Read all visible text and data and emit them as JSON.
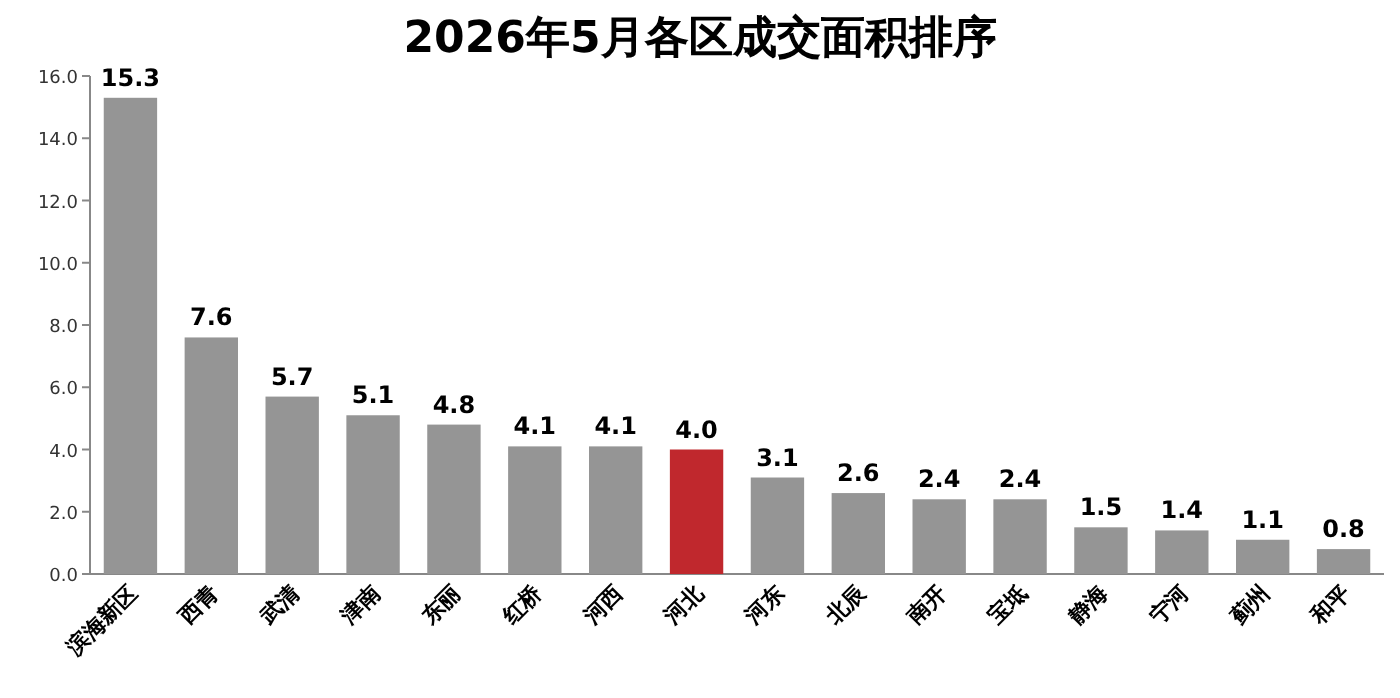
{
  "chart_data": {
    "type": "bar",
    "title": "2026年5月各区成交面积排序",
    "categories": [
      "滨海新区",
      "西青",
      "武清",
      "津南",
      "东丽",
      "红桥",
      "河西",
      "河北",
      "河东",
      "北辰",
      "南开",
      "宝坻",
      "静海",
      "宁河",
      "蓟州",
      "和平"
    ],
    "values": [
      15.3,
      7.6,
      5.7,
      5.1,
      4.8,
      4.1,
      4.1,
      4.0,
      3.1,
      2.6,
      2.4,
      2.4,
      1.5,
      1.4,
      1.1,
      0.8
    ],
    "value_labels": [
      "15.3",
      "7.6",
      "5.7",
      "5.1",
      "4.8",
      "4.1",
      "4.1",
      "4.0",
      "3.1",
      "2.6",
      "2.4",
      "2.4",
      "1.5",
      "1.4",
      "1.1",
      "0.8"
    ],
    "colors": [
      "#959595",
      "#959595",
      "#959595",
      "#959595",
      "#959595",
      "#959595",
      "#959595",
      "#c0282d",
      "#959595",
      "#959595",
      "#959595",
      "#959595",
      "#959595",
      "#959595",
      "#959595",
      "#959595"
    ],
    "ylim": [
      0,
      16
    ],
    "yticks": [
      {
        "value": 0,
        "label": "0.0"
      },
      {
        "value": 2,
        "label": "2.0"
      },
      {
        "value": 4,
        "label": "4.0"
      },
      {
        "value": 6,
        "label": "6.0"
      },
      {
        "value": 8,
        "label": "8.0"
      },
      {
        "value": 10,
        "label": "10.0"
      },
      {
        "value": 12,
        "label": "12.0"
      },
      {
        "value": 14,
        "label": "14.0"
      },
      {
        "value": 16,
        "label": "16.0"
      }
    ],
    "grid": false
  }
}
